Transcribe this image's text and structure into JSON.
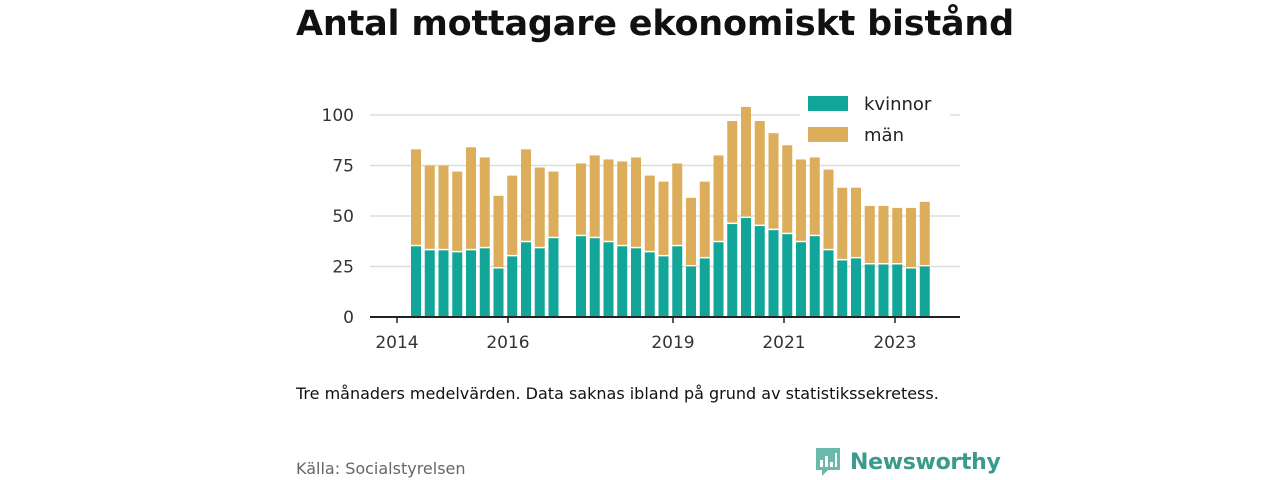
{
  "title": "Antal mottagare ekonomiskt bistånd",
  "note": "Tre månaders medelvärden. Data saknas ibland på grund av statistikssekretess.",
  "source": "Källa: Socialstyrelsen",
  "brand": {
    "name": "Newsworthy",
    "icon": "newsworthy-logo-icon"
  },
  "colors": {
    "kvinnor": "#12a59a",
    "man": "#dcae5c",
    "grid": "#dddddd",
    "axis": "#222222"
  },
  "chart_data": {
    "type": "bar",
    "stacked": true,
    "yticks": [
      0,
      25,
      50,
      75,
      100
    ],
    "ylim": [
      0,
      107
    ],
    "xticks": [
      "2014",
      "2016",
      "2019",
      "2021",
      "2023"
    ],
    "x_tick_index": [
      0,
      8,
      20,
      28,
      36
    ],
    "grid": true,
    "legend_position": "top-right",
    "series": [
      {
        "name": "kvinnor",
        "values": [
          35,
          33,
          33,
          32,
          33,
          34,
          24,
          30,
          37,
          34,
          39,
          null,
          40,
          39,
          37,
          35,
          34,
          32,
          30,
          35,
          25,
          29,
          37,
          46,
          49,
          45,
          43,
          41,
          37,
          40,
          33,
          28,
          29,
          26,
          26,
          26,
          24,
          25
        ]
      },
      {
        "name": "män",
        "values": [
          48,
          42,
          42,
          40,
          51,
          45,
          36,
          40,
          46,
          40,
          33,
          null,
          36,
          41,
          41,
          42,
          45,
          38,
          37,
          41,
          34,
          38,
          43,
          51,
          55,
          52,
          48,
          44,
          41,
          39,
          40,
          36,
          35,
          29,
          29,
          28,
          30,
          32
        ]
      }
    ]
  }
}
